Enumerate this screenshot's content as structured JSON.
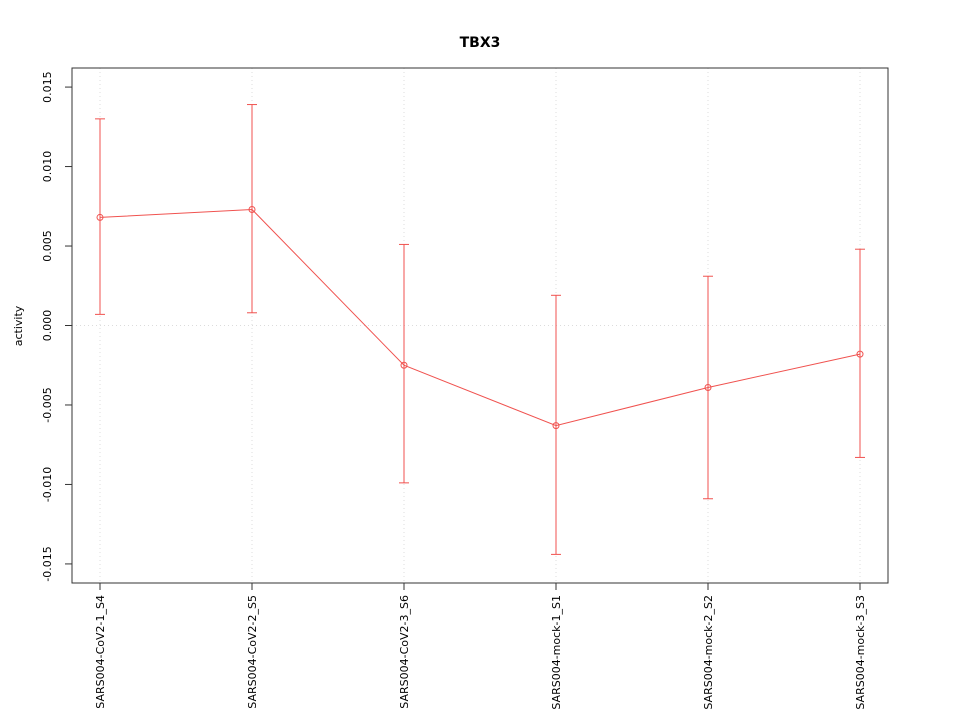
{
  "chart_data": {
    "type": "line",
    "title": "TBX3",
    "xlabel": "",
    "ylabel": "activity",
    "categories": [
      "SARS004-CoV2-1_S4",
      "SARS004-CoV2-2_S5",
      "SARS004-CoV2-3_S6",
      "SARS004-mock-1_S1",
      "SARS004-mock-2_S2",
      "SARS004-mock-3_S3"
    ],
    "series": [
      {
        "name": "activity",
        "values": [
          0.0068,
          0.0073,
          -0.0025,
          -0.0063,
          -0.0039,
          -0.0018
        ],
        "upper": [
          0.013,
          0.0139,
          0.0051,
          0.0019,
          0.0031,
          0.0048
        ],
        "lower": [
          0.0007,
          0.0008,
          -0.0099,
          -0.0144,
          -0.0109,
          -0.0083
        ]
      }
    ],
    "ylim": [
      -0.015,
      0.015
    ],
    "yticks": [
      -0.015,
      -0.01,
      -0.005,
      0,
      0.005,
      0.01,
      0.015
    ],
    "grid": "dotted vertical gridline at each category; dotted horizontal line at y=0",
    "legend": "none",
    "point_style": "open-circle",
    "error_bars": true,
    "colors": {
      "series": "#f0524f",
      "grid": "#dcdcdc",
      "box": "#333333",
      "text": "#000000"
    }
  }
}
